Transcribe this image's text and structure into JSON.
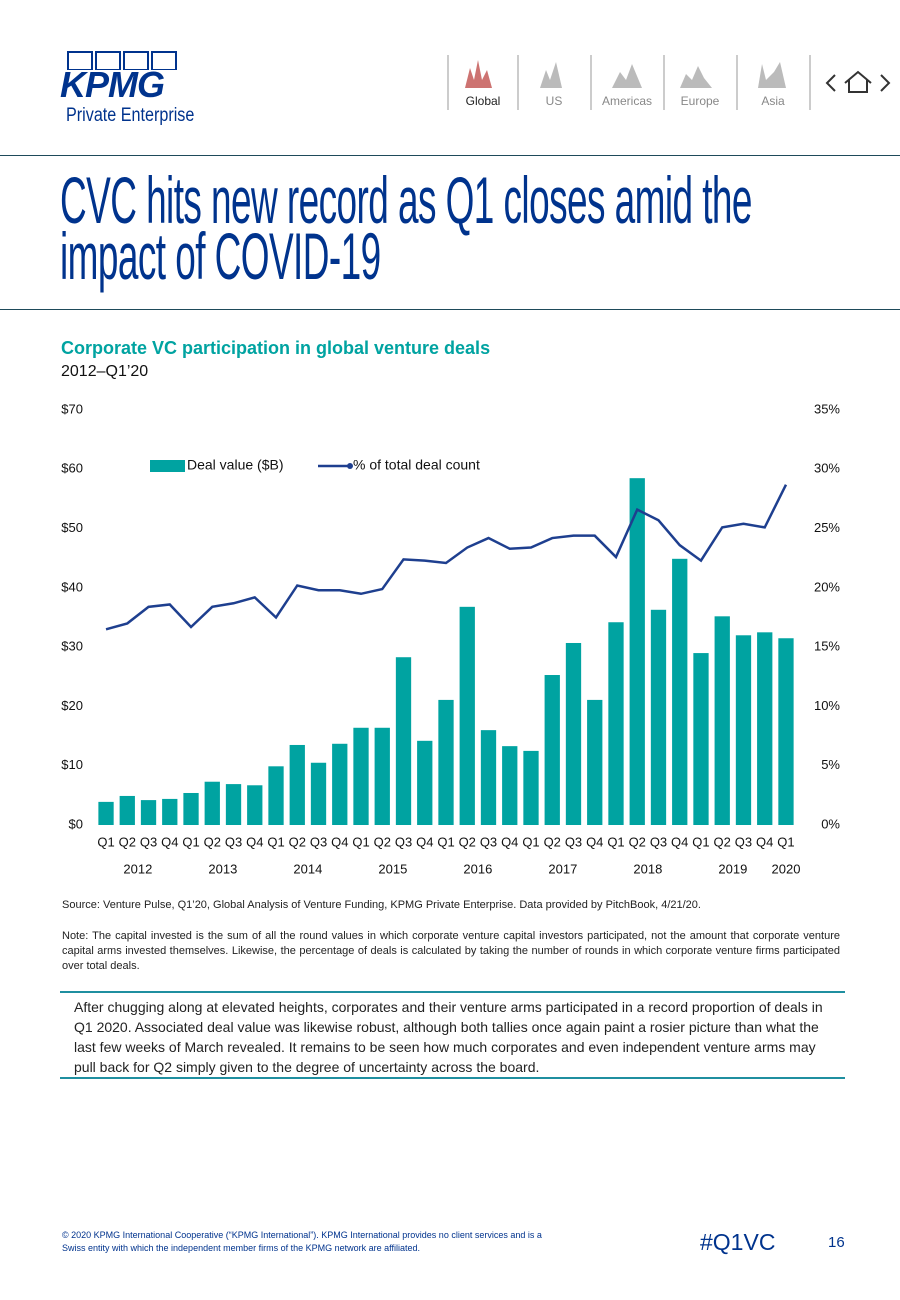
{
  "header": {
    "logo": "KPMG",
    "logo_sub": "Private Enterprise",
    "nav": [
      "Global",
      "US",
      "Americas",
      "Europe",
      "Asia"
    ]
  },
  "title": [
    "CVC hits new record as Q1 closes amid the",
    "impact of COVID-19"
  ],
  "chart_data": {
    "type": "bar",
    "title": "Corporate VC participation in global venture deals",
    "subtitle": "2012–Q1’20",
    "categories": [
      "Q1",
      "Q2",
      "Q3",
      "Q4",
      "Q1",
      "Q2",
      "Q3",
      "Q4",
      "Q1",
      "Q2",
      "Q3",
      "Q4",
      "Q1",
      "Q2",
      "Q3",
      "Q4",
      "Q1",
      "Q2",
      "Q3",
      "Q4",
      "Q1",
      "Q2",
      "Q3",
      "Q4",
      "Q1",
      "Q2",
      "Q3",
      "Q4",
      "Q1",
      "Q2",
      "Q3",
      "Q4",
      "Q1"
    ],
    "year_labels": [
      "2012",
      "2013",
      "2014",
      "2015",
      "2016",
      "2017",
      "2018",
      "2019",
      "2020"
    ],
    "series": [
      {
        "name": "Deal value ($B)",
        "type": "bar",
        "color": "#00a3a1",
        "values": [
          3.9,
          4.9,
          4.2,
          4.4,
          5.4,
          7.3,
          6.9,
          6.7,
          9.9,
          13.5,
          10.5,
          13.7,
          16.4,
          16.4,
          28.3,
          14.2,
          21.1,
          36.8,
          16.0,
          13.3,
          12.5,
          25.3,
          30.7,
          21.1,
          34.2,
          58.5,
          36.3,
          44.9,
          29.0,
          35.2,
          32.0,
          32.5,
          31.5
        ]
      },
      {
        "name": "% of total deal count",
        "type": "line",
        "color": "#1e3f8f",
        "axis": "y2",
        "values": [
          16.5,
          17.0,
          18.4,
          18.6,
          16.7,
          18.4,
          18.7,
          19.2,
          17.5,
          20.2,
          19.8,
          19.8,
          19.5,
          19.9,
          22.4,
          22.3,
          22.1,
          23.4,
          24.2,
          23.3,
          23.4,
          24.2,
          24.4,
          24.4,
          22.6,
          26.6,
          25.7,
          23.6,
          22.3,
          25.1,
          25.4,
          25.1,
          28.7
        ]
      }
    ],
    "ylim": [
      0,
      70
    ],
    "yticks": [
      {
        "value": 0,
        "label": "$0"
      },
      {
        "value": 10,
        "label": "$10"
      },
      {
        "value": 20,
        "label": "$20"
      },
      {
        "value": 30,
        "label": "$30"
      },
      {
        "value": 40,
        "label": "$40"
      },
      {
        "value": 50,
        "label": "$50"
      },
      {
        "value": 60,
        "label": "$60"
      },
      {
        "value": 70,
        "label": "$70"
      }
    ],
    "y2lim": [
      0,
      35
    ],
    "y2ticks": [
      {
        "value": 0,
        "label": "0%"
      },
      {
        "value": 5,
        "label": "5%"
      },
      {
        "value": 10,
        "label": "10%"
      },
      {
        "value": 15,
        "label": "15%"
      },
      {
        "value": 20,
        "label": "20%"
      },
      {
        "value": 25,
        "label": "25%"
      },
      {
        "value": 30,
        "label": "30%"
      },
      {
        "value": 35,
        "label": "35%"
      }
    ],
    "legend": "top",
    "grid": false
  },
  "source": "Source: Venture Pulse, Q1’20, Global Analysis of Venture Funding, KPMG Private Enterprise. Data provided by PitchBook, 4/21/20.",
  "note": "Note: The capital invested is the sum of all the round values in which corporate venture capital investors participated, not the amount that corporate venture capital arms invested themselves. Likewise, the percentage of deals is calculated by taking the number of rounds in which corporate venture firms participated over total deals.",
  "body": "After chugging along at elevated heights, corporates and their venture arms participated in a record proportion of deals in Q1 2020. Associated deal value was likewise robust, although both tallies once again paint a rosier picture than what the last few weeks of March revealed. It remains to be seen how much corporates and even independent venture arms may pull back for Q2 simply given to the degree of uncertainty across the board.",
  "footer": {
    "copyright": "© 2020 KPMG International Cooperative (“KPMG International”). KPMG International provides no client services and is a Swiss entity with which the independent member firms of the KPMG network are affiliated.",
    "hashtag": "#Q1VC",
    "page": "16"
  }
}
